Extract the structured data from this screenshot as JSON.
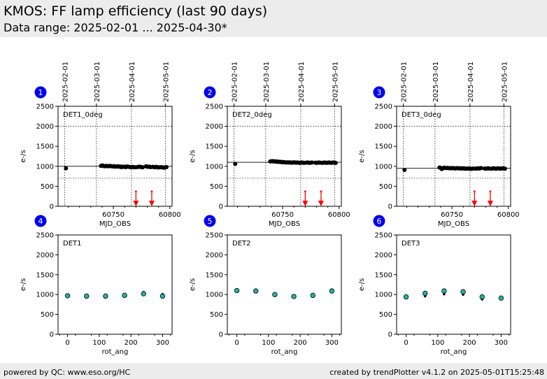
{
  "header": {
    "title": "KMOS: FF lamp efficiency (last 90 days)",
    "subtitle": "Data range: 2025-02-01 ... 2025-04-30*"
  },
  "footer": {
    "left": "powered by QC: www.eso.org/HC",
    "right": "created by trendPlotter v4.1.2 on 2025-05-01T15:25:48"
  },
  "colors": {
    "header_bg": "#ececec",
    "badge": "#0000ee",
    "outlier_arrow": "#ff0000",
    "marker_face": "#20b2aa",
    "points": "#000000"
  },
  "chart_data": [
    {
      "type": "scatter",
      "badge": "1",
      "label": "DET1_0deg",
      "xlabel": "MJD_OBS",
      "ylabel": "e-/s",
      "xlim": [
        60701,
        60802
      ],
      "ylim": [
        0,
        2500
      ],
      "yticks": [
        0,
        500,
        1000,
        1500,
        2000,
        2500
      ],
      "xticks": [
        60750,
        60800
      ],
      "top_axis_dates": [
        {
          "mjd": 60707,
          "label": "2025-02-01"
        },
        {
          "mjd": 60735,
          "label": "2025-03-01"
        },
        {
          "mjd": 60766,
          "label": "2025-04-01"
        },
        {
          "mjd": 60796,
          "label": "2025-05-01"
        }
      ],
      "reference_line": 1000,
      "threshold_line": 700,
      "outliers_x": [
        60770,
        60784
      ],
      "points": [
        [
          60708,
          950
        ],
        [
          60739,
          1010
        ],
        [
          60740,
          1020
        ],
        [
          60741,
          1015
        ],
        [
          60742,
          1000
        ],
        [
          60743,
          1005
        ],
        [
          60744,
          1010
        ],
        [
          60745,
          1000
        ],
        [
          60746,
          1005
        ],
        [
          60747,
          1010
        ],
        [
          60748,
          1000
        ],
        [
          60749,
          1000
        ],
        [
          60750,
          995
        ],
        [
          60751,
          1000
        ],
        [
          60752,
          990
        ],
        [
          60753,
          995
        ],
        [
          60754,
          1000
        ],
        [
          60755,
          990
        ],
        [
          60756,
          995
        ],
        [
          60757,
          980
        ],
        [
          60758,
          990
        ],
        [
          60759,
          985
        ],
        [
          60760,
          990
        ],
        [
          60761,
          980
        ],
        [
          60762,
          995
        ],
        [
          60763,
          990
        ],
        [
          60764,
          985
        ],
        [
          60765,
          980
        ],
        [
          60766,
          975
        ],
        [
          60767,
          985
        ],
        [
          60768,
          980
        ],
        [
          60769,
          975
        ],
        [
          60771,
          980
        ],
        [
          60772,
          985
        ],
        [
          60773,
          990
        ],
        [
          60774,
          985
        ],
        [
          60775,
          980
        ],
        [
          60776,
          975
        ],
        [
          60779,
          1000
        ],
        [
          60780,
          990
        ],
        [
          60781,
          985
        ],
        [
          60782,
          990
        ],
        [
          60783,
          980
        ],
        [
          60785,
          985
        ],
        [
          60786,
          980
        ],
        [
          60787,
          975
        ],
        [
          60788,
          985
        ],
        [
          60789,
          980
        ],
        [
          60790,
          970
        ],
        [
          60791,
          975
        ],
        [
          60792,
          980
        ],
        [
          60793,
          975
        ],
        [
          60794,
          970
        ],
        [
          60795,
          965
        ],
        [
          60796,
          975
        ],
        [
          60797,
          980
        ]
      ]
    },
    {
      "type": "scatter",
      "badge": "2",
      "label": "DET2_0deg",
      "xlabel": "MJD_OBS",
      "ylabel": "e-/s",
      "xlim": [
        60701,
        60802
      ],
      "ylim": [
        0,
        2500
      ],
      "yticks": [
        0,
        500,
        1000,
        1500,
        2000,
        2500
      ],
      "xticks": [
        60750,
        60800
      ],
      "top_axis_dates": [
        {
          "mjd": 60707,
          "label": "2025-02-01"
        },
        {
          "mjd": 60735,
          "label": "2025-03-01"
        },
        {
          "mjd": 60766,
          "label": "2025-04-01"
        },
        {
          "mjd": 60796,
          "label": "2025-05-01"
        }
      ],
      "reference_line": 1100,
      "threshold_line": 700,
      "outliers_x": [
        60770,
        60784
      ],
      "points": [
        [
          60708,
          1060
        ],
        [
          60739,
          1120
        ],
        [
          60740,
          1125
        ],
        [
          60741,
          1130
        ],
        [
          60742,
          1120
        ],
        [
          60743,
          1125
        ],
        [
          60744,
          1115
        ],
        [
          60745,
          1120
        ],
        [
          60746,
          1110
        ],
        [
          60747,
          1115
        ],
        [
          60748,
          1105
        ],
        [
          60749,
          1110
        ],
        [
          60750,
          1100
        ],
        [
          60751,
          1105
        ],
        [
          60752,
          1100
        ],
        [
          60753,
          1095
        ],
        [
          60754,
          1100
        ],
        [
          60755,
          1095
        ],
        [
          60756,
          1100
        ],
        [
          60757,
          1090
        ],
        [
          60758,
          1095
        ],
        [
          60759,
          1090
        ],
        [
          60760,
          1100
        ],
        [
          60761,
          1095
        ],
        [
          60762,
          1090
        ],
        [
          60763,
          1095
        ],
        [
          60764,
          1090
        ],
        [
          60765,
          1085
        ],
        [
          60766,
          1090
        ],
        [
          60767,
          1095
        ],
        [
          60768,
          1090
        ],
        [
          60769,
          1085
        ],
        [
          60771,
          1090
        ],
        [
          60772,
          1095
        ],
        [
          60773,
          1090
        ],
        [
          60774,
          1085
        ],
        [
          60775,
          1090
        ],
        [
          60776,
          1095
        ],
        [
          60779,
          1090
        ],
        [
          60780,
          1085
        ],
        [
          60781,
          1090
        ],
        [
          60782,
          1095
        ],
        [
          60783,
          1090
        ],
        [
          60785,
          1085
        ],
        [
          60786,
          1090
        ],
        [
          60787,
          1095
        ],
        [
          60788,
          1090
        ],
        [
          60789,
          1085
        ],
        [
          60790,
          1090
        ],
        [
          60791,
          1095
        ],
        [
          60792,
          1090
        ],
        [
          60793,
          1085
        ],
        [
          60794,
          1090
        ],
        [
          60795,
          1095
        ],
        [
          60796,
          1090
        ],
        [
          60797,
          1085
        ]
      ]
    },
    {
      "type": "scatter",
      "badge": "3",
      "label": "DET3_0deg",
      "xlabel": "MJD_OBS",
      "ylabel": "e-/s",
      "xlim": [
        60701,
        60802
      ],
      "ylim": [
        0,
        2500
      ],
      "yticks": [
        0,
        500,
        1000,
        1500,
        2000,
        2500
      ],
      "xticks": [
        60750,
        60800
      ],
      "top_axis_dates": [
        {
          "mjd": 60707,
          "label": "2025-02-01"
        },
        {
          "mjd": 60735,
          "label": "2025-03-01"
        },
        {
          "mjd": 60766,
          "label": "2025-04-01"
        },
        {
          "mjd": 60796,
          "label": "2025-05-01"
        }
      ],
      "reference_line": 950,
      "threshold_line": 700,
      "outliers_x": [
        60770,
        60784
      ],
      "points": [
        [
          60708,
          910
        ],
        [
          60739,
          970
        ],
        [
          60740,
          960
        ],
        [
          60741,
          930
        ],
        [
          60742,
          950
        ],
        [
          60743,
          965
        ],
        [
          60744,
          960
        ],
        [
          60745,
          955
        ],
        [
          60746,
          960
        ],
        [
          60747,
          955
        ],
        [
          60748,
          950
        ],
        [
          60749,
          955
        ],
        [
          60750,
          950
        ],
        [
          60751,
          955
        ],
        [
          60752,
          950
        ],
        [
          60753,
          945
        ],
        [
          60754,
          950
        ],
        [
          60755,
          955
        ],
        [
          60756,
          950
        ],
        [
          60757,
          945
        ],
        [
          60758,
          950
        ],
        [
          60759,
          945
        ],
        [
          60760,
          950
        ],
        [
          60761,
          945
        ],
        [
          60762,
          940
        ],
        [
          60763,
          945
        ],
        [
          60764,
          940
        ],
        [
          60765,
          945
        ],
        [
          60766,
          940
        ],
        [
          60767,
          935
        ],
        [
          60768,
          940
        ],
        [
          60769,
          945
        ],
        [
          60771,
          940
        ],
        [
          60772,
          945
        ],
        [
          60773,
          950
        ],
        [
          60774,
          945
        ],
        [
          60775,
          950
        ],
        [
          60776,
          955
        ],
        [
          60779,
          945
        ],
        [
          60780,
          940
        ],
        [
          60781,
          945
        ],
        [
          60782,
          950
        ],
        [
          60783,
          945
        ],
        [
          60785,
          940
        ],
        [
          60786,
          945
        ],
        [
          60787,
          950
        ],
        [
          60788,
          945
        ],
        [
          60789,
          940
        ],
        [
          60790,
          945
        ],
        [
          60791,
          950
        ],
        [
          60792,
          945
        ],
        [
          60793,
          940
        ],
        [
          60794,
          945
        ],
        [
          60795,
          950
        ],
        [
          60796,
          945
        ],
        [
          60797,
          940
        ]
      ]
    },
    {
      "type": "scatter",
      "badge": "4",
      "label": "DET1",
      "xlabel": "rot_ang",
      "ylabel": "e-/s",
      "xlim": [
        -30,
        330
      ],
      "ylim": [
        0,
        2500
      ],
      "yticks": [
        0,
        500,
        1000,
        1500,
        2000,
        2500
      ],
      "xticks": [
        0,
        100,
        200,
        300
      ],
      "points": [
        [
          0,
          960
        ],
        [
          0,
          1000
        ],
        [
          60,
          960
        ],
        [
          60,
          990
        ],
        [
          120,
          960
        ],
        [
          180,
          970
        ],
        [
          240,
          1020
        ],
        [
          240,
          1060
        ],
        [
          300,
          960
        ],
        [
          300,
          1010
        ]
      ],
      "highlighted": [
        [
          0,
          970
        ],
        [
          60,
          960
        ],
        [
          120,
          960
        ],
        [
          180,
          980
        ],
        [
          240,
          1020
        ],
        [
          300,
          960
        ]
      ]
    },
    {
      "type": "scatter",
      "badge": "5",
      "label": "DET2",
      "xlabel": "rot_ang",
      "ylabel": "e-/s",
      "xlim": [
        -30,
        330
      ],
      "ylim": [
        0,
        2500
      ],
      "yticks": [
        0,
        500,
        1000,
        1500,
        2000,
        2500
      ],
      "xticks": [
        0,
        100,
        200,
        300
      ],
      "points": [
        [
          0,
          1090
        ],
        [
          0,
          1110
        ],
        [
          60,
          1080
        ],
        [
          60,
          1100
        ],
        [
          120,
          1000
        ],
        [
          180,
          940
        ],
        [
          240,
          970
        ],
        [
          300,
          1080
        ],
        [
          300,
          1100
        ]
      ],
      "highlighted": [
        [
          0,
          1100
        ],
        [
          60,
          1090
        ],
        [
          120,
          1000
        ],
        [
          180,
          950
        ],
        [
          240,
          980
        ],
        [
          300,
          1090
        ]
      ]
    },
    {
      "type": "scatter",
      "badge": "6",
      "label": "DET3",
      "xlabel": "rot_ang",
      "ylabel": "e-/s",
      "xlim": [
        -30,
        330
      ],
      "ylim": [
        0,
        2500
      ],
      "yticks": [
        0,
        500,
        1000,
        1500,
        2000,
        2500
      ],
      "xticks": [
        0,
        100,
        200,
        300
      ],
      "points": [
        [
          0,
          930
        ],
        [
          60,
          960
        ],
        [
          60,
          1040
        ],
        [
          120,
          1010
        ],
        [
          120,
          1090
        ],
        [
          180,
          1000
        ],
        [
          180,
          1080
        ],
        [
          240,
          880
        ],
        [
          240,
          950
        ],
        [
          300,
          900
        ]
      ],
      "highlighted": [
        [
          0,
          940
        ],
        [
          60,
          1030
        ],
        [
          120,
          1090
        ],
        [
          180,
          1070
        ],
        [
          240,
          940
        ],
        [
          300,
          910
        ]
      ]
    }
  ]
}
